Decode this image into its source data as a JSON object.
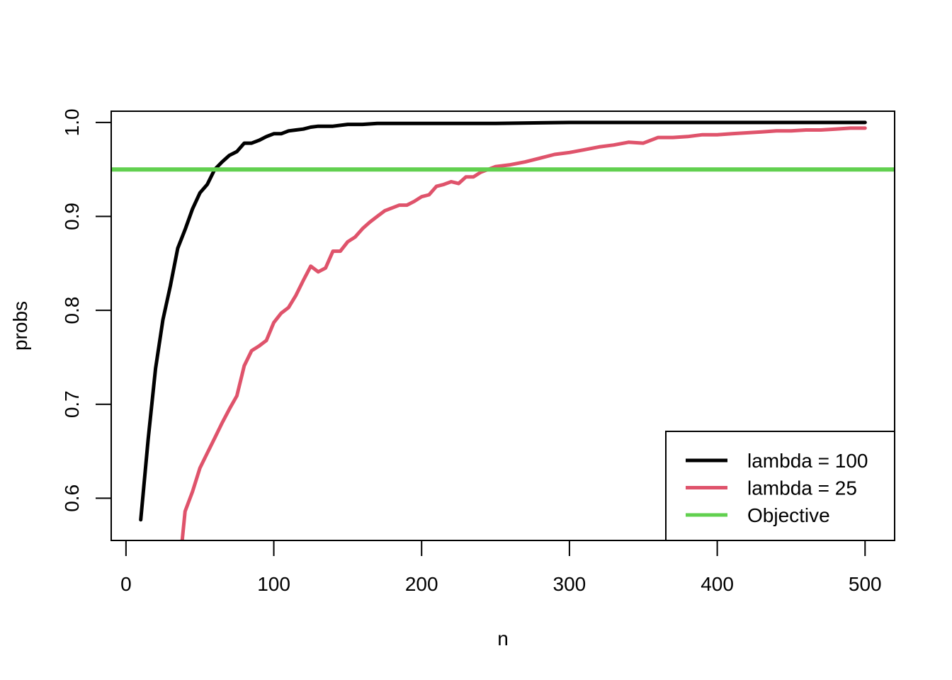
{
  "chart_data": {
    "type": "line",
    "xlabel": "n",
    "ylabel": "probs",
    "xlim": [
      -10,
      520
    ],
    "ylim": [
      0.555,
      1.012
    ],
    "x_ticks": [
      0,
      100,
      200,
      300,
      400,
      500
    ],
    "x_tick_labels": [
      "0",
      "100",
      "200",
      "300",
      "400",
      "500"
    ],
    "y_ticks": [
      0.6,
      0.7,
      0.8,
      0.9,
      1.0
    ],
    "y_tick_labels": [
      "0.6",
      "0.7",
      "0.8",
      "0.9",
      "1.0"
    ],
    "grid": false,
    "legend_position": "bottom-right",
    "series": [
      {
        "name": "lambda = 100",
        "color": "#000000",
        "x": [
          10,
          15,
          20,
          25,
          30,
          35,
          40,
          45,
          50,
          55,
          60,
          65,
          70,
          75,
          80,
          85,
          90,
          95,
          100,
          105,
          110,
          115,
          120,
          125,
          130,
          140,
          150,
          160,
          170,
          180,
          200,
          250,
          300,
          350,
          400,
          450,
          500
        ],
        "y": [
          0.577,
          0.663,
          0.738,
          0.79,
          0.826,
          0.866,
          0.886,
          0.908,
          0.925,
          0.934,
          0.95,
          0.958,
          0.965,
          0.969,
          0.978,
          0.978,
          0.981,
          0.985,
          0.988,
          0.988,
          0.991,
          0.992,
          0.993,
          0.995,
          0.996,
          0.996,
          0.998,
          0.998,
          0.999,
          0.999,
          0.999,
          0.999,
          1.0,
          1.0,
          1.0,
          1.0,
          1.0
        ]
      },
      {
        "name": "lambda = 25",
        "color": "#DF536B",
        "x": [
          38,
          40,
          45,
          50,
          55,
          60,
          65,
          70,
          75,
          80,
          85,
          90,
          95,
          100,
          105,
          110,
          115,
          120,
          125,
          130,
          135,
          140,
          145,
          150,
          155,
          160,
          165,
          170,
          175,
          180,
          185,
          190,
          195,
          200,
          205,
          210,
          215,
          220,
          225,
          230,
          235,
          240,
          245,
          250,
          260,
          270,
          280,
          290,
          300,
          310,
          320,
          330,
          340,
          350,
          360,
          370,
          380,
          390,
          400,
          410,
          420,
          430,
          440,
          450,
          460,
          470,
          480,
          490,
          500
        ],
        "y": [
          0.555,
          0.586,
          0.607,
          0.632,
          0.648,
          0.664,
          0.68,
          0.695,
          0.709,
          0.741,
          0.757,
          0.762,
          0.768,
          0.787,
          0.797,
          0.803,
          0.816,
          0.832,
          0.847,
          0.841,
          0.845,
          0.863,
          0.863,
          0.873,
          0.878,
          0.887,
          0.894,
          0.9,
          0.906,
          0.909,
          0.912,
          0.912,
          0.916,
          0.921,
          0.923,
          0.932,
          0.934,
          0.937,
          0.935,
          0.942,
          0.942,
          0.947,
          0.95,
          0.953,
          0.955,
          0.958,
          0.962,
          0.966,
          0.968,
          0.971,
          0.974,
          0.976,
          0.979,
          0.978,
          0.984,
          0.984,
          0.985,
          0.987,
          0.987,
          0.988,
          0.989,
          0.99,
          0.991,
          0.991,
          0.992,
          0.992,
          0.993,
          0.994,
          0.994
        ]
      },
      {
        "name": "Objective",
        "color": "#61D04F",
        "hline": 0.95
      }
    ]
  }
}
